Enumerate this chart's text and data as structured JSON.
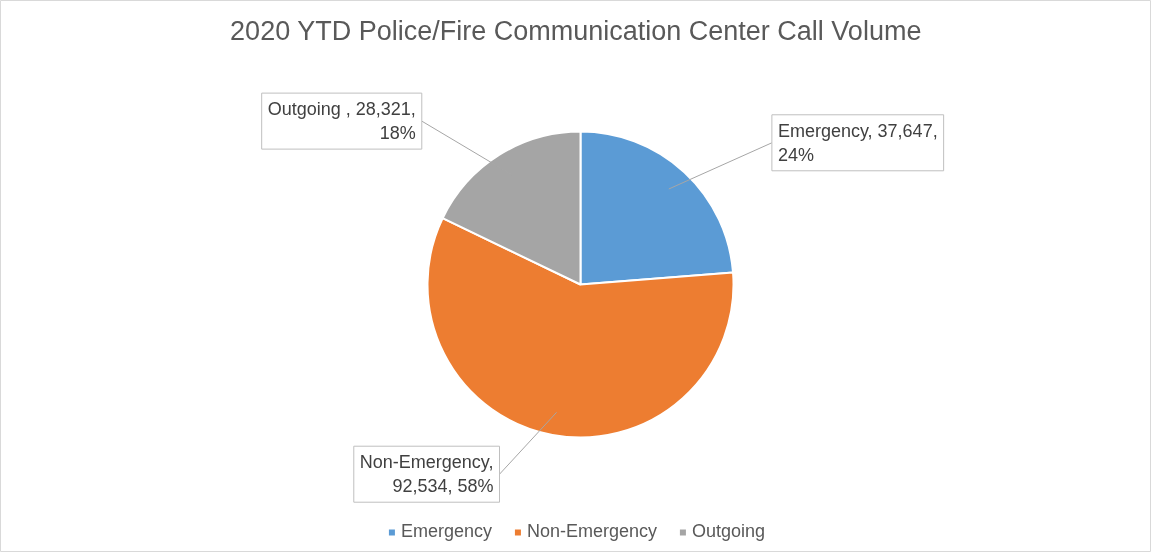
{
  "chart_data": {
    "type": "pie",
    "title": "2020 YTD Police/Fire Communication Center Call Volume",
    "categories": [
      "Emergency",
      "Non-Emergency",
      "Outgoing"
    ],
    "values": [
      37647,
      92534,
      28321
    ],
    "colors": [
      "#5b9bd5",
      "#ed7d31",
      "#a5a5a5"
    ],
    "value_labels": [
      "Emergency, 37,647, 24%",
      "Non-Emergency, 92,534, 58%",
      "Outgoing , 28,321, 18%"
    ],
    "legend": "bottom"
  }
}
